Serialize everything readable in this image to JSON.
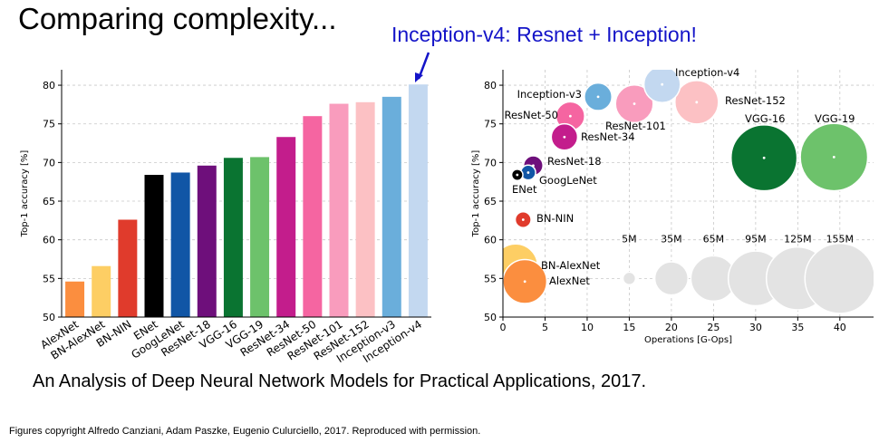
{
  "slide": {
    "title": "Comparing complexity...",
    "annotation": "Inception-v4: Resnet + Inception!",
    "paper_reference": "An Analysis of Deep Neural Network Models for Practical Applications, 2017.",
    "copyright": "Figures copyright Alfredo Canziani, Adam Paszke, Eugenio Culurciello, 2017. Reproduced with permission.",
    "annotation_color": "#1414c8"
  },
  "chart_data": [
    {
      "type": "bar",
      "xlabel": "",
      "ylabel": "Top-1 accuracy [%]",
      "ylim": [
        50,
        82
      ],
      "yticks": [
        50,
        55,
        60,
        65,
        70,
        75,
        80
      ],
      "grid": true,
      "categories": [
        "AlexNet",
        "BN-AlexNet",
        "BN-NIN",
        "ENet",
        "GoogLeNet",
        "ResNet-18",
        "VGG-16",
        "VGG-19",
        "ResNet-34",
        "ResNet-50",
        "ResNet-101",
        "ResNet-152",
        "Inception-v3",
        "Inception-v4"
      ],
      "values": [
        54.6,
        56.6,
        62.6,
        68.4,
        68.7,
        69.6,
        70.6,
        70.7,
        73.3,
        76.0,
        77.6,
        77.8,
        78.5,
        80.1
      ],
      "colors": [
        "#fb8e3f",
        "#fdce64",
        "#e03b2c",
        "#000000",
        "#1156a6",
        "#6e0f7b",
        "#0a7431",
        "#6dc26b",
        "#c31d8c",
        "#f565a1",
        "#f99cbd",
        "#fcc1c4",
        "#6aaedb",
        "#c3d8f0"
      ]
    },
    {
      "type": "scatter",
      "xlabel": "Operations [G-Ops]",
      "ylabel": "Top-1 accuracy [%]",
      "xlim": [
        0,
        44
      ],
      "ylim": [
        50,
        82
      ],
      "xticks": [
        0,
        5,
        10,
        15,
        20,
        25,
        30,
        35,
        40
      ],
      "yticks": [
        50,
        55,
        60,
        65,
        70,
        75,
        80
      ],
      "grid": true,
      "points": [
        {
          "label": "Inception-v4",
          "x": 18.9,
          "y": 80.1,
          "params": 42,
          "color": "#c3d8f0"
        },
        {
          "label": "Inception-v3",
          "x": 11.3,
          "y": 78.5,
          "params": 24,
          "color": "#6aaedb"
        },
        {
          "label": "ResNet-152",
          "x": 23.0,
          "y": 77.8,
          "params": 60,
          "color": "#fcc1c4"
        },
        {
          "label": "ResNet-101",
          "x": 15.6,
          "y": 77.6,
          "params": 45,
          "color": "#f99cbd"
        },
        {
          "label": "ResNet-50",
          "x": 8.0,
          "y": 76.0,
          "params": 26,
          "color": "#f565a1"
        },
        {
          "label": "ResNet-34",
          "x": 7.3,
          "y": 73.3,
          "params": 22,
          "color": "#c31d8c"
        },
        {
          "label": "ResNet-18",
          "x": 3.6,
          "y": 69.6,
          "params": 12,
          "color": "#6e0f7b"
        },
        {
          "label": "GoogLeNet",
          "x": 3.0,
          "y": 68.7,
          "params": 7,
          "color": "#1156a6"
        },
        {
          "label": "ENet",
          "x": 1.7,
          "y": 68.4,
          "params": 4,
          "color": "#000000"
        },
        {
          "label": "BN-NIN",
          "x": 2.4,
          "y": 62.6,
          "params": 8,
          "color": "#e03b2c"
        },
        {
          "label": "BN-AlexNet",
          "x": 1.5,
          "y": 56.6,
          "params": 62,
          "color": "#fdce64"
        },
        {
          "label": "AlexNet",
          "x": 2.6,
          "y": 54.6,
          "params": 61,
          "color": "#fb8e3f"
        },
        {
          "label": "VGG-16",
          "x": 31.0,
          "y": 70.6,
          "params": 138,
          "color": "#0a7431"
        },
        {
          "label": "VGG-19",
          "x": 39.3,
          "y": 70.7,
          "params": 144,
          "color": "#6dc26b"
        }
      ],
      "size_legend": {
        "labels": [
          "5M",
          "35M",
          "65M",
          "95M",
          "125M",
          "155M"
        ],
        "params": [
          5,
          35,
          65,
          95,
          125,
          155
        ],
        "x": [
          15,
          20,
          25,
          30,
          35,
          40
        ],
        "y": 55,
        "color": "#e3e3e3"
      }
    }
  ]
}
